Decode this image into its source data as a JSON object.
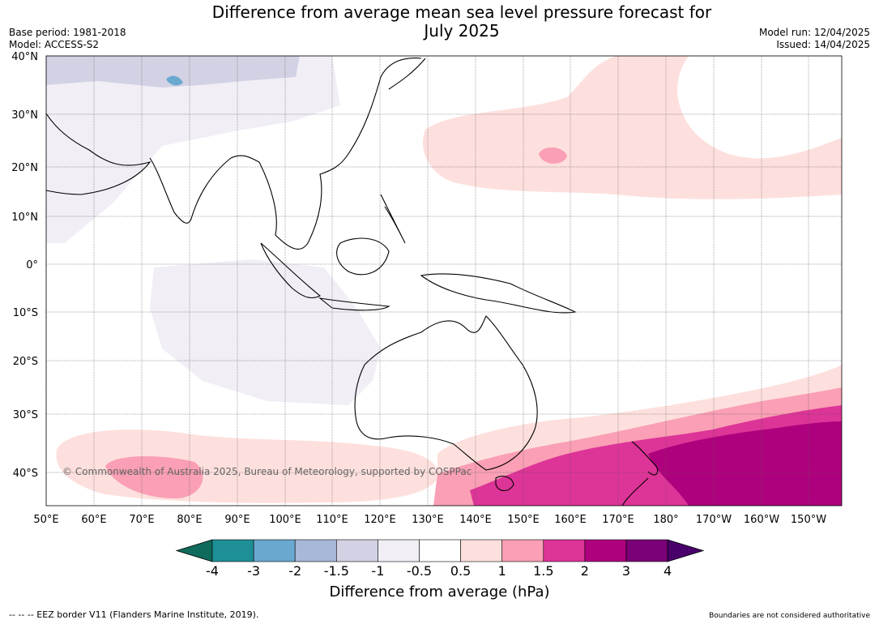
{
  "header": {
    "title_line1": "Difference from average mean sea level pressure forecast for",
    "title_line2": "July 2025",
    "base_period": "Base period: 1981-2018",
    "model": "Model: ACCESS-S2",
    "model_run": "Model run: 12/04/2025",
    "issued": "Issued: 14/04/2025"
  },
  "map": {
    "lat_labels": [
      "40°N",
      "30°N",
      "20°N",
      "10°N",
      "0°",
      "10°S",
      "20°S",
      "30°S",
      "40°S"
    ],
    "lon_labels": [
      "50°E",
      "60°E",
      "70°E",
      "80°E",
      "90°E",
      "100°E",
      "110°E",
      "120°E",
      "130°E",
      "140°E",
      "150°E",
      "160°E",
      "170°E",
      "180°",
      "170°W",
      "160°W",
      "150°W"
    ],
    "copyright": "© Commonwealth of Australia 2025, Bureau of Meteorology, supported by COSPPac"
  },
  "colorbar": {
    "ticks": [
      "-4",
      "-3",
      "-2",
      "-1.5",
      "-1",
      "-0.5",
      "0.5",
      "1",
      "1.5",
      "2",
      "3",
      "4"
    ],
    "colors": [
      "#0f6b5c",
      "#1e8f96",
      "#6aa8cf",
      "#a7b8d8",
      "#d2d2e4",
      "#f1eef6",
      "#ffffff",
      "#fde0dd",
      "#fa9fb5",
      "#dd3497",
      "#ae017e",
      "#7a0177",
      "#49006a"
    ],
    "title": "Difference from average (hPa)"
  },
  "footer": {
    "eez": "--  --  -- EEZ border V11 (Flanders Marine Institute, 2019).",
    "disclaimer": "Boundaries are not considered authoritative"
  }
}
